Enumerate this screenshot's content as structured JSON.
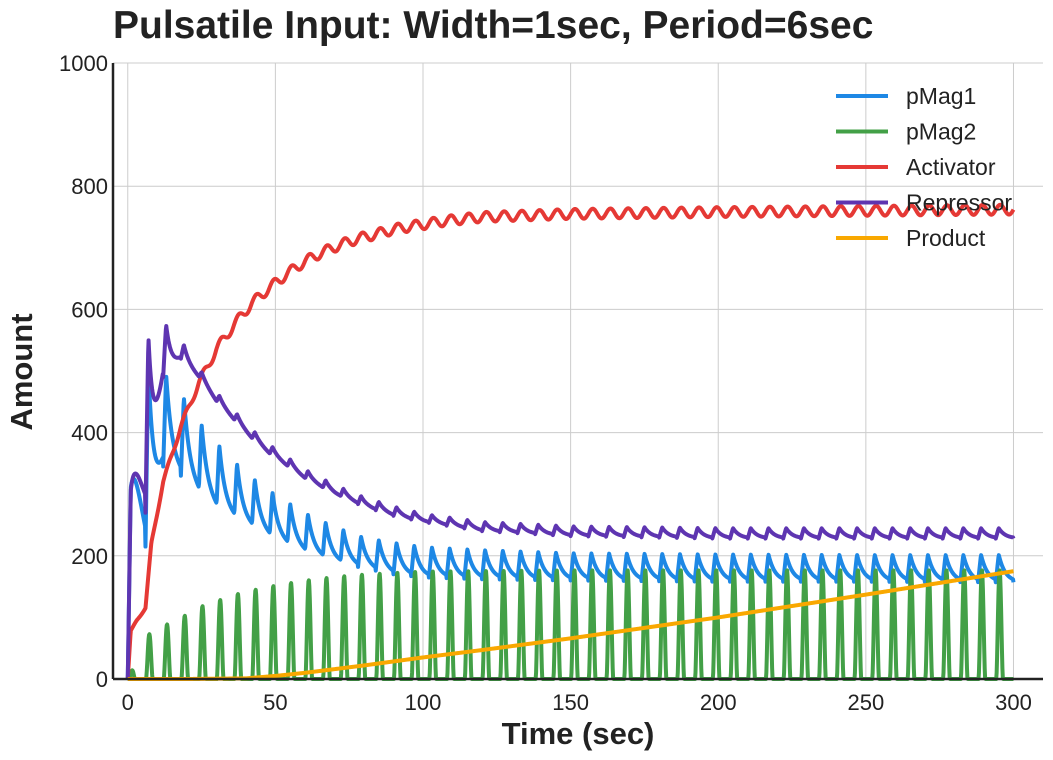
{
  "chart_data": {
    "type": "line",
    "title": "Pulsatile Input: Width=1sec, Period=6sec",
    "xlabel": "Time (sec)",
    "ylabel": "Amount",
    "xlim": [
      -5,
      310
    ],
    "ylim": [
      0,
      1000
    ],
    "xticks": [
      0,
      50,
      100,
      150,
      200,
      250,
      300
    ],
    "yticks": [
      0,
      200,
      400,
      600,
      800,
      1000
    ],
    "xtick_labels": [
      "0",
      "50",
      "100",
      "150",
      "200",
      "250",
      "300"
    ],
    "ytick_labels": [
      "0",
      "200",
      "400",
      "600",
      "800",
      "1000"
    ],
    "grid": true,
    "legend_position": "top-right",
    "pulse_period": 6,
    "pulse_width": 1,
    "series": [
      {
        "name": "pMag1",
        "color": "#1e88e5",
        "envelope": {
          "x": [
            0,
            1,
            6,
            12,
            18,
            24,
            30,
            40,
            50,
            60,
            70,
            80,
            90,
            100,
            120,
            150,
            200,
            250,
            300
          ],
          "peak": [
            0,
            310,
            505,
            500,
            465,
            420,
            385,
            335,
            300,
            270,
            248,
            230,
            222,
            215,
            210,
            205,
            203,
            202,
            202
          ],
          "trough": [
            0,
            300,
            215,
            345,
            330,
            300,
            275,
            250,
            225,
            205,
            190,
            180,
            170,
            165,
            162,
            160,
            158,
            158,
            157
          ]
        }
      },
      {
        "name": "pMag2",
        "color": "#43a047",
        "envelope": {
          "x": [
            0,
            2,
            7,
            13,
            19,
            25,
            31,
            37,
            43,
            50,
            60,
            70,
            80,
            100,
            150,
            200,
            250,
            300
          ],
          "peak": [
            0,
            20,
            72,
            88,
            102,
            118,
            128,
            138,
            145,
            152,
            160,
            166,
            170,
            175,
            177,
            177,
            177,
            177
          ],
          "trough": [
            0,
            0,
            0,
            0,
            0,
            0,
            0,
            0,
            0,
            0,
            0,
            0,
            0,
            0,
            0,
            0,
            0,
            0
          ]
        }
      },
      {
        "name": "Activator",
        "color": "#e53935",
        "x": [
          0,
          1,
          3,
          6,
          8,
          12,
          18,
          24,
          30,
          36,
          42,
          48,
          54,
          60,
          66,
          72,
          78,
          84,
          90,
          96,
          100,
          108,
          120,
          150,
          200,
          250,
          300
        ],
        "values": [
          0,
          78,
          95,
          115,
          220,
          320,
          410,
          480,
          535,
          575,
          610,
          635,
          658,
          678,
          693,
          705,
          715,
          722,
          730,
          735,
          738,
          744,
          750,
          755,
          758,
          760,
          762
        ],
        "ripple": 8
      },
      {
        "name": "Repressor",
        "color": "#5e35b1",
        "envelope": {
          "x": [
            0,
            1,
            6,
            12,
            18,
            24,
            30,
            36,
            42,
            48,
            54,
            60,
            70,
            80,
            90,
            100,
            120,
            150,
            200,
            250,
            300
          ],
          "peak": [
            0,
            305,
            550,
            580,
            550,
            505,
            465,
            435,
            405,
            380,
            360,
            340,
            315,
            295,
            280,
            268,
            255,
            248,
            245,
            245,
            245
          ],
          "trough": [
            0,
            295,
            270,
            490,
            520,
            490,
            450,
            420,
            390,
            365,
            345,
            325,
            300,
            280,
            265,
            255,
            240,
            232,
            228,
            228,
            228
          ]
        }
      },
      {
        "name": "Product",
        "color": "#f9a800",
        "x": [
          0,
          20,
          40,
          50,
          60,
          80,
          100,
          120,
          150,
          200,
          250,
          300
        ],
        "values": [
          0,
          0,
          1,
          5,
          10,
          22,
          35,
          47,
          66,
          100,
          137,
          175
        ]
      }
    ]
  }
}
